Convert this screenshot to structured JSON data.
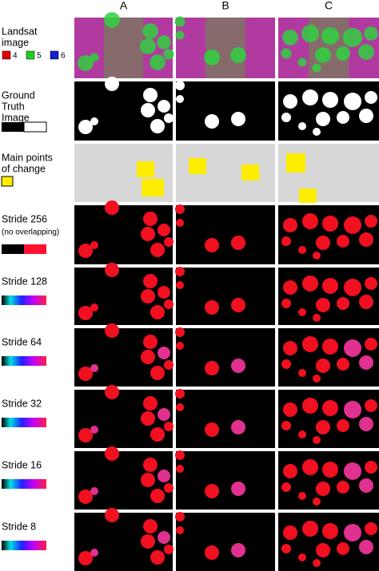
{
  "columns": [
    "A",
    "B",
    "C"
  ],
  "rows": [
    {
      "label": [
        "Landsat",
        "image"
      ],
      "legend": [
        "4",
        "5",
        "6"
      ]
    },
    {
      "label": [
        "Ground",
        "Truth",
        "Image"
      ]
    },
    {
      "label": [
        "Main points",
        "of change"
      ]
    },
    {
      "label": [
        "Stride 256"
      ],
      "note": "(no overlapping)"
    },
    {
      "label": [
        "Stride 128"
      ]
    },
    {
      "label": [
        "Stride 64"
      ]
    },
    {
      "label": [
        "Stride 32"
      ]
    },
    {
      "label": [
        "Stride 16"
      ]
    },
    {
      "label": [
        "Stride 8"
      ]
    }
  ]
}
